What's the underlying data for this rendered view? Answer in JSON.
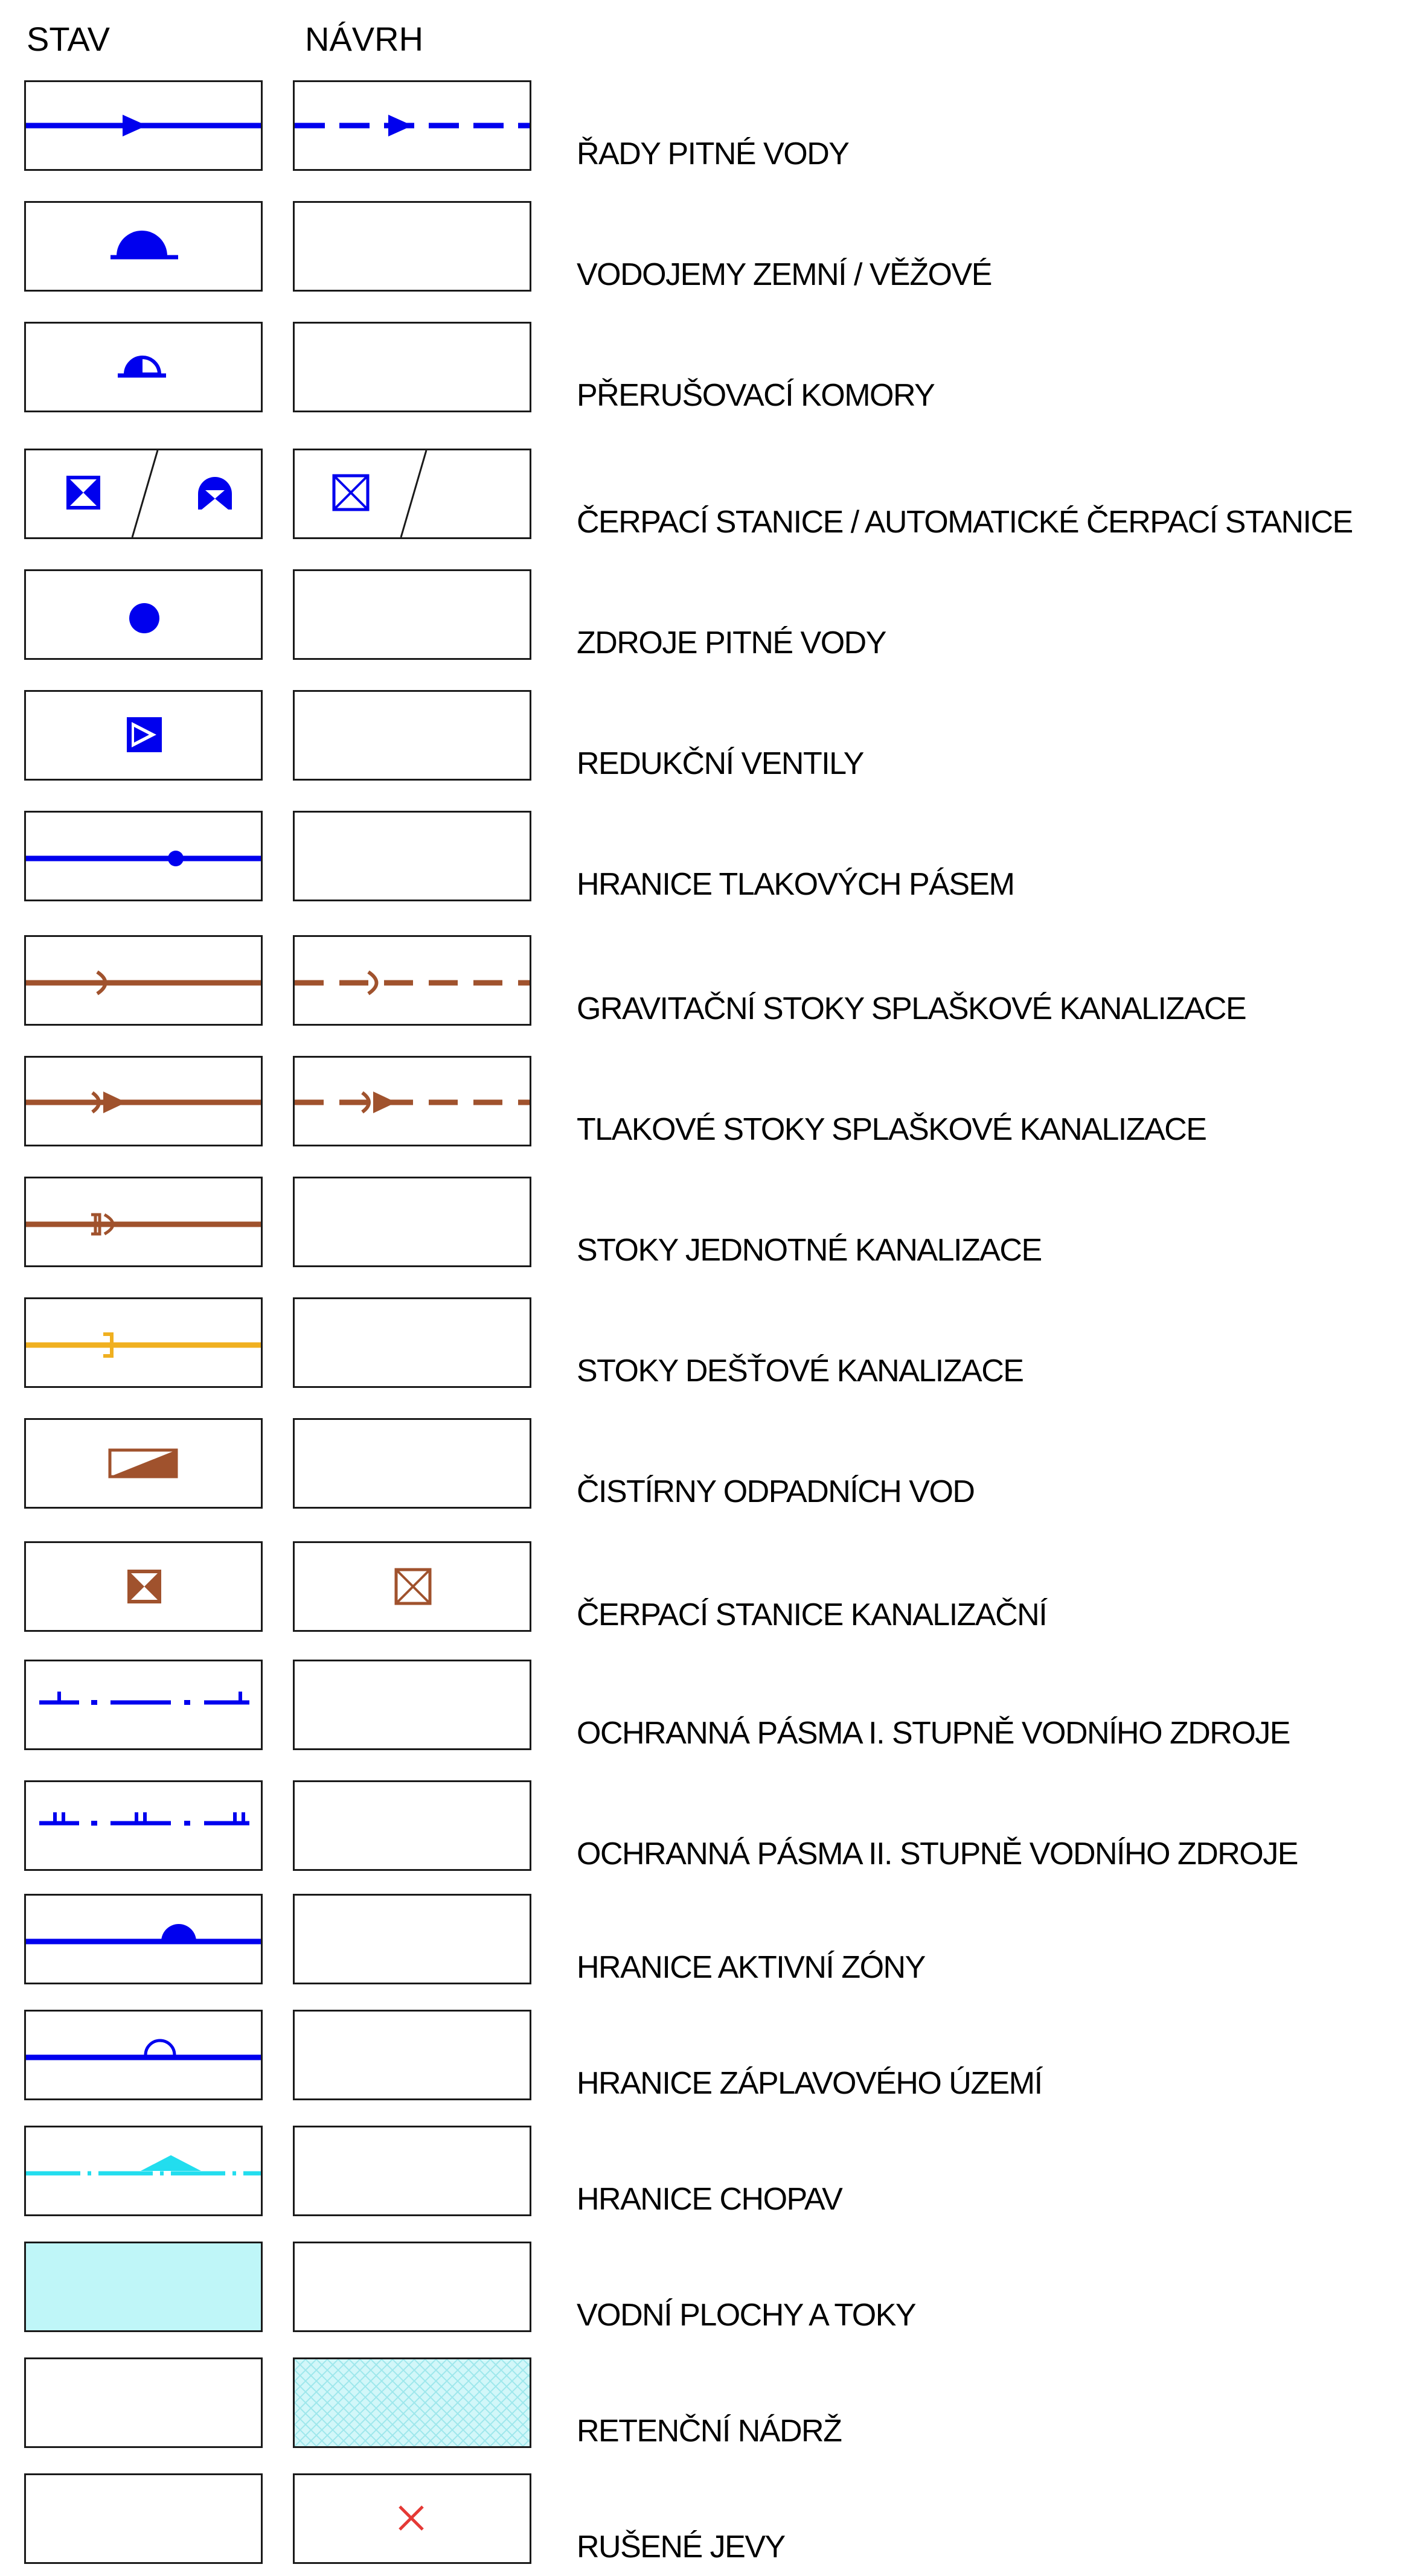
{
  "header": {
    "stav": "STAV",
    "navrh": "NÁVRH"
  },
  "colors": {
    "water": "#0000ee",
    "sewer": "#a0522d",
    "storm": "#f0b020",
    "cyan": "#22ddee",
    "fill": "#bff6f8",
    "cancel": "#e53935"
  },
  "rows": [
    {
      "label": "ŘADY PITNÉ VODY"
    },
    {
      "label": "VODOJEMY ZEMNÍ / VĚŽOVÉ"
    },
    {
      "label": "PŘERUŠOVACÍ KOMORY"
    },
    {
      "label": "ČERPACÍ STANICE / AUTOMATICKÉ ČERPACÍ STANICE"
    },
    {
      "label": "ZDROJE PITNÉ VODY"
    },
    {
      "label": "REDUKČNÍ VENTILY"
    },
    {
      "label": "HRANICE TLAKOVÝCH PÁSEM"
    },
    {
      "label": "GRAVITAČNÍ STOKY SPLAŠKOVÉ KANALIZACE"
    },
    {
      "label": "TLAKOVÉ STOKY SPLAŠKOVÉ KANALIZACE"
    },
    {
      "label": "STOKY JEDNOTNÉ KANALIZACE"
    },
    {
      "label": "STOKY DEŠŤOVÉ KANALIZACE"
    },
    {
      "label": "ČISTÍRNY ODPADNÍCH VOD"
    },
    {
      "label": "ČERPACÍ STANICE KANALIZAČNÍ"
    },
    {
      "label": "OCHRANNÁ PÁSMA I. STUPNĚ VODNÍHO ZDROJE"
    },
    {
      "label": "OCHRANNÁ PÁSMA II. STUPNĚ VODNÍHO ZDROJE"
    },
    {
      "label": "HRANICE AKTIVNÍ ZÓNY"
    },
    {
      "label": "HRANICE ZÁPLAVOVÉHO ÚZEMÍ"
    },
    {
      "label": "HRANICE CHOPAV"
    },
    {
      "label": "VODNÍ PLOCHY A TOKY"
    },
    {
      "label": "RETENČNÍ NÁDRŽ"
    },
    {
      "label": "RUŠENÉ JEVY"
    }
  ]
}
